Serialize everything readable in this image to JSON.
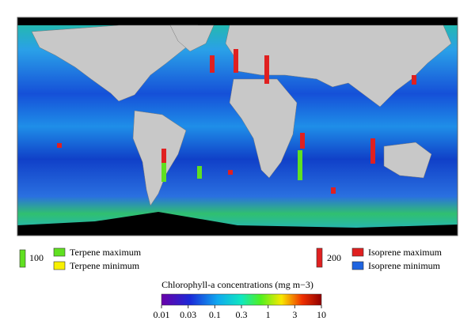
{
  "legend": {
    "terpene_scale": "100",
    "terpene_max": "Terpene maximum",
    "terpene_min": "Terpene minimum",
    "isoprene_scale": "200",
    "isoprene_max": "Isoprene maximum",
    "isoprene_min": "Isoprene minimum"
  },
  "colorbar": {
    "title": "Chlorophyll-a concentrations (mg m−3)",
    "ticks": [
      "0.01",
      "0.03",
      "0.1",
      "0.3",
      "1",
      "3",
      "10"
    ]
  }
}
